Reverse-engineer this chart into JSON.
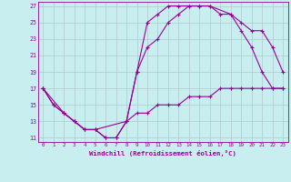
{
  "xlabel": "Windchill (Refroidissement éolien,°C)",
  "bg_color": "#c8eef0",
  "grid_color": "#b0c8cc",
  "line_color": "#990099",
  "xlim": [
    -0.5,
    23.5
  ],
  "ylim": [
    10.5,
    27.5
  ],
  "yticks": [
    11,
    13,
    15,
    17,
    19,
    21,
    23,
    25,
    27
  ],
  "xticks": [
    0,
    1,
    2,
    3,
    4,
    5,
    6,
    7,
    8,
    9,
    10,
    11,
    12,
    13,
    14,
    15,
    16,
    17,
    18,
    19,
    20,
    21,
    22,
    23
  ],
  "curve1_x": [
    0,
    1,
    2,
    3,
    4,
    5,
    6,
    7,
    8,
    9,
    10,
    11,
    12,
    13,
    14,
    15,
    16,
    17,
    18,
    19,
    20,
    21,
    22,
    23
  ],
  "curve1_y": [
    17,
    15,
    14,
    13,
    12,
    12,
    11,
    11,
    13,
    19,
    25,
    26,
    27,
    27,
    27,
    27,
    27,
    26,
    26,
    24,
    22,
    19,
    17,
    17
  ],
  "curve2_x": [
    0,
    1,
    2,
    3,
    4,
    5,
    6,
    7,
    8,
    9,
    10,
    11,
    12,
    13,
    14,
    15,
    16,
    17,
    18,
    19,
    20,
    21,
    22,
    23
  ],
  "curve2_y": [
    17,
    15,
    14,
    13,
    12,
    12,
    11,
    11,
    13,
    14,
    14,
    15,
    15,
    15,
    16,
    16,
    16,
    17,
    17,
    17,
    17,
    17,
    17,
    17
  ],
  "curve3_x": [
    0,
    2,
    3,
    4,
    5,
    8,
    9,
    10,
    11,
    12,
    13,
    14,
    15,
    16,
    18,
    19,
    20,
    21,
    22,
    23
  ],
  "curve3_y": [
    17,
    14,
    13,
    12,
    12,
    13,
    19,
    22,
    23,
    25,
    26,
    27,
    27,
    27,
    26,
    25,
    24,
    24,
    22,
    19
  ]
}
